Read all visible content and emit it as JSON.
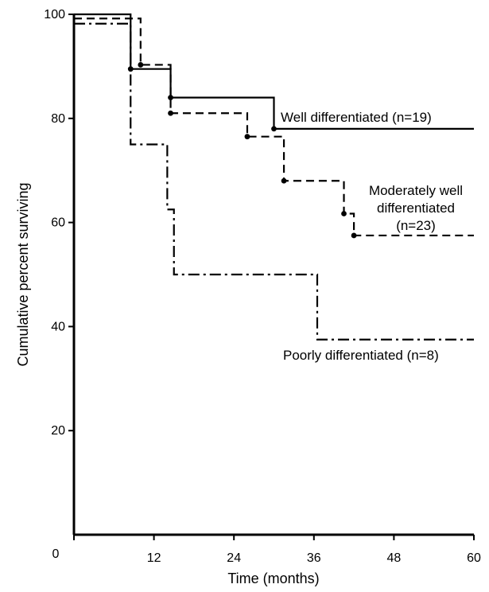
{
  "chart_data": {
    "type": "line",
    "title": "",
    "xlabel": "Time (months)",
    "ylabel": "Cumulative percent surviving",
    "xlim": [
      0,
      60
    ],
    "ylim": [
      0,
      100
    ],
    "x_ticks": [
      0,
      12,
      24,
      36,
      48,
      60
    ],
    "y_ticks": [
      20,
      40,
      60,
      80,
      100
    ],
    "grid": false,
    "legend": "inline labels",
    "series": [
      {
        "name": "Well differentiated (n=19)",
        "label_lines": [
          "Well differentiated (n=19)"
        ],
        "style": "solid",
        "color": "#000000",
        "steps": [
          {
            "x": 0,
            "y": 100
          },
          {
            "x": 8.5,
            "y": 89.5
          },
          {
            "x": 14.5,
            "y": 84
          },
          {
            "x": 30,
            "y": 78
          },
          {
            "x": 60,
            "y": 78
          }
        ],
        "censored": [
          {
            "x": 8.5,
            "y": 89.5
          },
          {
            "x": 14.5,
            "y": 84
          },
          {
            "x": 30,
            "y": 78
          }
        ]
      },
      {
        "name": "Moderately well differentiated (n=23)",
        "label_lines": [
          "Moderately well",
          "differentiated",
          "(n=23)"
        ],
        "style": "dashed",
        "color": "#000000",
        "steps": [
          {
            "x": 0,
            "y": 99.2
          },
          {
            "x": 10,
            "y": 90.3
          },
          {
            "x": 14.5,
            "y": 81
          },
          {
            "x": 26,
            "y": 76.5
          },
          {
            "x": 31.5,
            "y": 68
          },
          {
            "x": 40.5,
            "y": 61.7
          },
          {
            "x": 42,
            "y": 57.5
          },
          {
            "x": 60,
            "y": 57.5
          }
        ],
        "censored": [
          {
            "x": 10,
            "y": 90.3
          },
          {
            "x": 14.5,
            "y": 81
          },
          {
            "x": 26,
            "y": 76.5
          },
          {
            "x": 31.5,
            "y": 68
          },
          {
            "x": 40.5,
            "y": 61.7
          },
          {
            "x": 42,
            "y": 57.5
          }
        ]
      },
      {
        "name": "Poorly differentiated (n=8)",
        "label_lines": [
          "Poorly differentiated (n=8)"
        ],
        "style": "dash-dot",
        "color": "#000000",
        "steps": [
          {
            "x": 0,
            "y": 98.2
          },
          {
            "x": 8.5,
            "y": 75
          },
          {
            "x": 14,
            "y": 62.5
          },
          {
            "x": 15,
            "y": 50
          },
          {
            "x": 36.5,
            "y": 37.5
          },
          {
            "x": 60,
            "y": 37.5
          }
        ],
        "censored": []
      }
    ]
  }
}
